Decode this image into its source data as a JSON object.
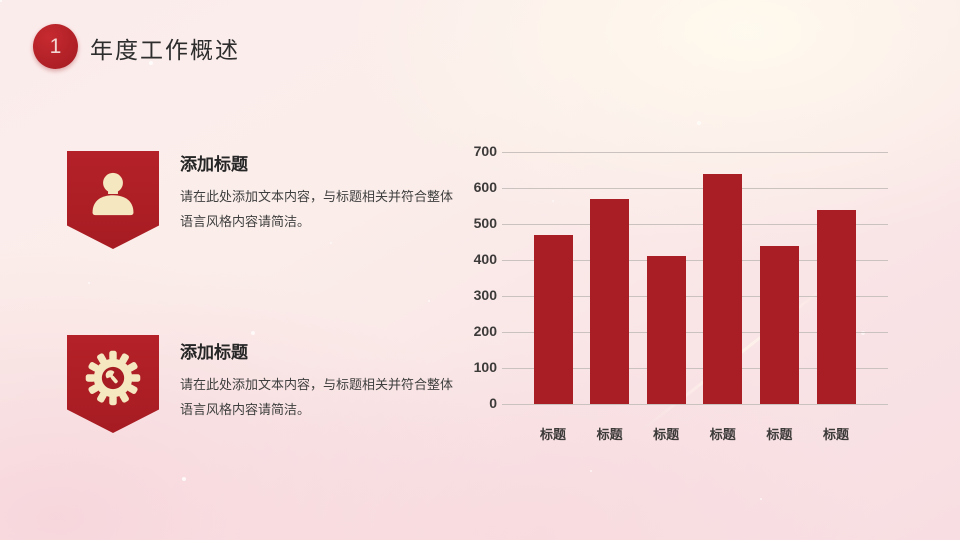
{
  "slide": {
    "section_number": "1",
    "title": "年度工作概述"
  },
  "features": [
    {
      "icon": "person-icon",
      "title": "添加标题",
      "body_lines": [
        "请在此处添加文本内容，与标题相关并符合整体",
        "语言风格内容请简洁。"
      ]
    },
    {
      "icon": "gear-icon",
      "title": "添加标题",
      "body_lines": [
        "请在此处添加文本内容，与标题相关并符合整体",
        "语言风格内容请简洁。"
      ]
    }
  ],
  "chart_data": {
    "type": "bar",
    "categories": [
      "标题",
      "标题",
      "标题",
      "标题",
      "标题",
      "标题"
    ],
    "values": [
      470,
      570,
      410,
      640,
      440,
      540
    ],
    "title": "",
    "xlabel": "",
    "ylabel": "",
    "ylim": [
      0,
      700
    ],
    "ytick_interval": 100,
    "grid": true,
    "legend": false,
    "bar_color": "#a91e25"
  },
  "colors": {
    "accent_red": "#ab1e25",
    "badge_red": "#b22026",
    "icon_cream": "#f5e7c0",
    "title_text": "#2d2d2d",
    "body_text": "#3f3f3f",
    "axis_text": "#3d3a3a",
    "gridline": "#c9c2bf"
  }
}
